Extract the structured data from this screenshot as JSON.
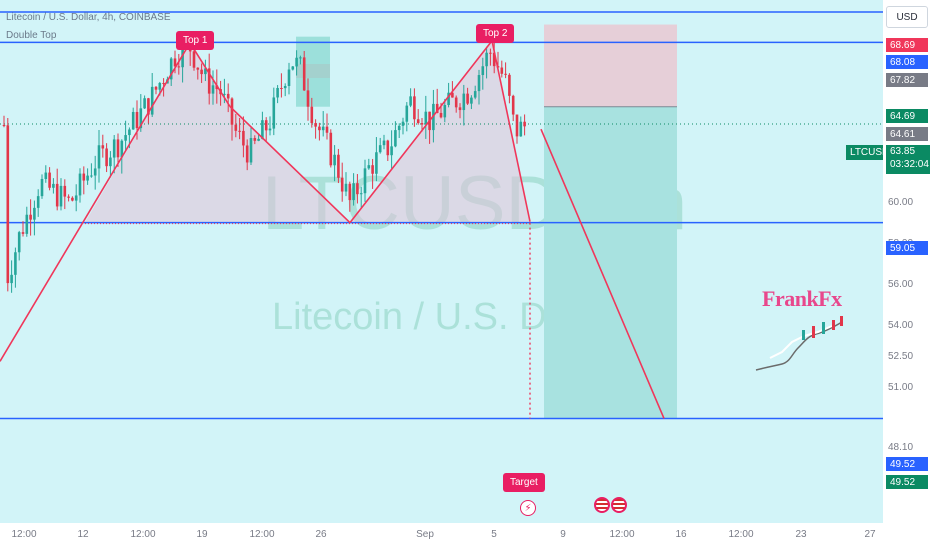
{
  "header": {
    "title": "Litecoin / U.S. Dollar, 4h, COINBASE",
    "indicator": "Double Top"
  },
  "watermark": {
    "symbol": "LTCUSD, 4h",
    "name": "Litecoin / U.S. Dollar"
  },
  "currency_button": "USD",
  "callouts": {
    "top1": "Top 1",
    "top2": "Top 2",
    "target": "Target"
  },
  "symbol_tag": "LTCUSD",
  "last_price": {
    "price": "63.85",
    "countdown": "03:32:04"
  },
  "logo_text": "FrankFx",
  "colors": {
    "background": "#d2f4f8",
    "up": "#26a69a",
    "down": "#e2364a",
    "pattern_line": "#f0365a",
    "level_line": "#2962ff",
    "target_zone": "#a8e2e0",
    "stop_zone": "#e6cfd8"
  },
  "chart_data": {
    "type": "candlestick",
    "title": "Litecoin / U.S. Dollar, 4h, COINBASE",
    "pattern": "Double Top",
    "x_ticks": [
      "12:00",
      "12",
      "12:00",
      "19",
      "12:00",
      "26",
      "Sep",
      "5",
      "9",
      "12:00",
      "16",
      "12:00",
      "23",
      "27"
    ],
    "y_ticks": [
      "62.00",
      "60.00",
      "58.00",
      "56.00",
      "54.00",
      "52.50",
      "51.00",
      "48.10"
    ],
    "ylim": [
      47.5,
      69.8
    ],
    "price_labels": [
      {
        "value": 68.69,
        "text": "68.69",
        "color": "#f0365a"
      },
      {
        "value": 68.08,
        "text": "68.08",
        "color": "#2962ff"
      },
      {
        "value": 67.82,
        "text": "67.82",
        "color": "#787b86"
      },
      {
        "value": 64.69,
        "text": "64.69",
        "color": "#0b8a63"
      },
      {
        "value": 64.61,
        "text": "64.61",
        "color": "#787b86"
      },
      {
        "value": 59.05,
        "text": "59.05",
        "color": "#2962ff"
      },
      {
        "value": 49.52,
        "text": "49.52",
        "color": "#2962ff"
      },
      {
        "value": 49.52,
        "text": "49.52",
        "color": "#0b8a63"
      }
    ],
    "horizontal_levels": [
      69.3,
      67.82,
      59.05,
      49.52
    ],
    "double_top_lines": [
      [
        0,
        52.3
      ],
      [
        190,
        67.8
      ],
      [
        230,
        64.7
      ],
      [
        350,
        59.05
      ],
      [
        492,
        67.9
      ],
      [
        530,
        59.1
      ]
    ],
    "neckline": 59.05,
    "projection": {
      "from": [
        541,
        63.6
      ],
      "to": [
        664,
        49.52
      ]
    },
    "target_zone": {
      "top": 64.69,
      "bottom": 49.52
    },
    "stop_zone": {
      "top": 68.69,
      "bottom": 64.69
    },
    "last_price": 63.85
  }
}
